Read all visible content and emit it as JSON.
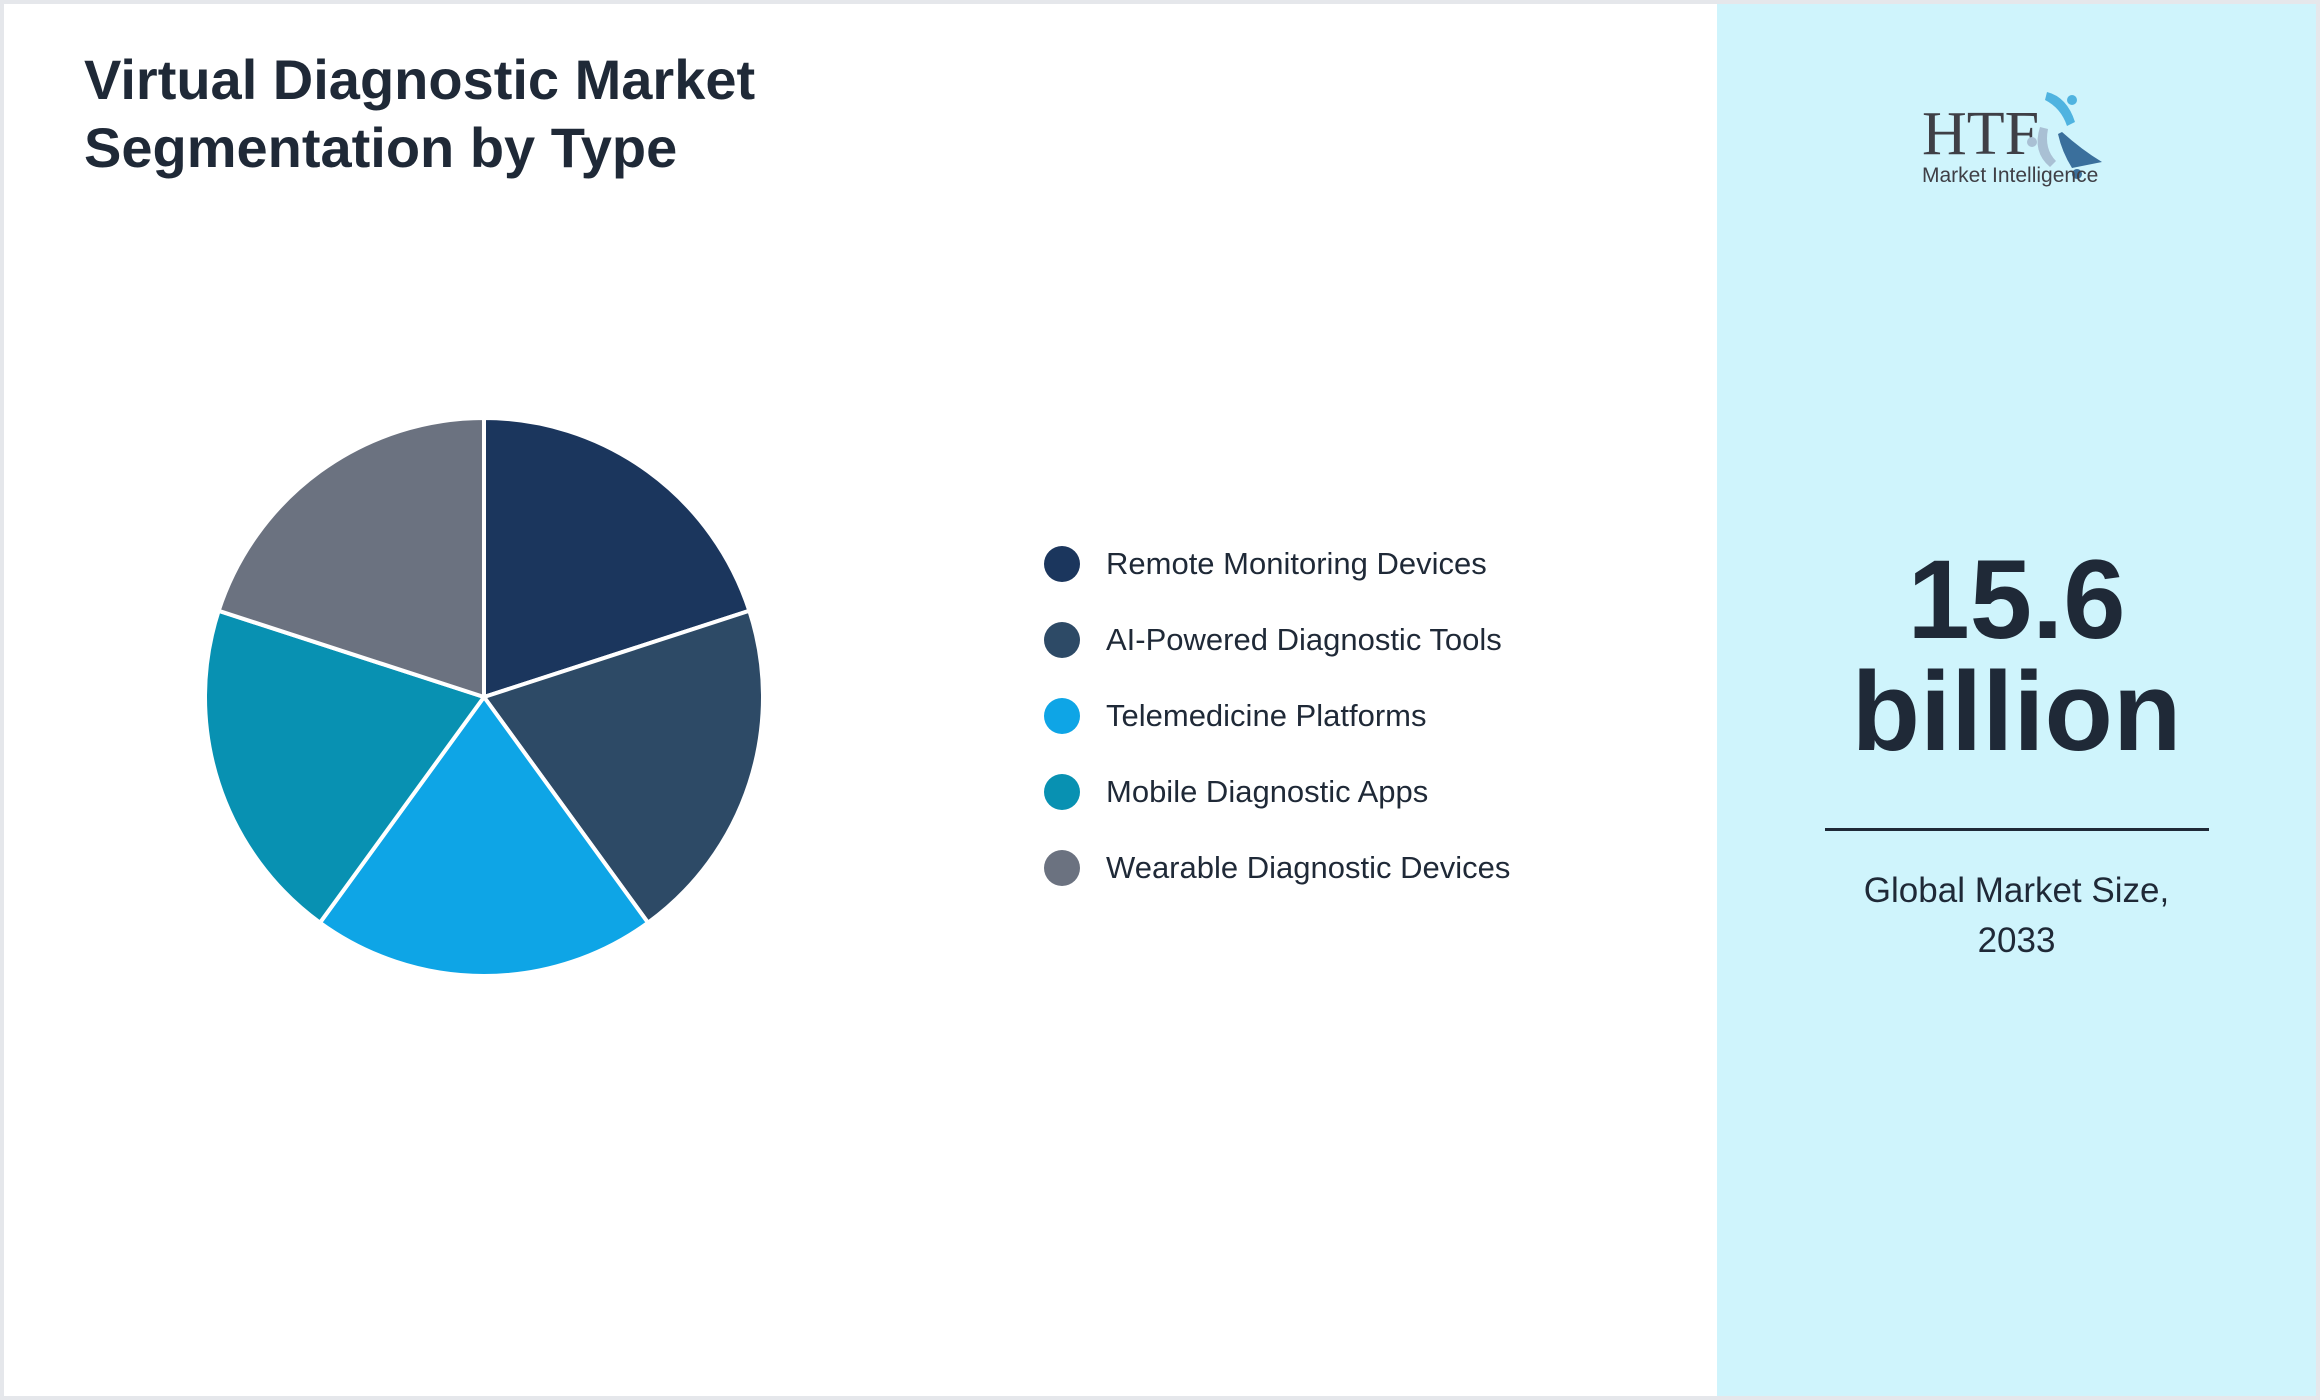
{
  "chart_data": {
    "type": "pie",
    "title": "Virtual Diagnostic Market Segmentation by Type",
    "categories": [
      "Remote Monitoring Devices",
      "AI-Powered Diagnostic Tools",
      "Telemedicine Platforms",
      "Mobile Diagnostic Apps",
      "Wearable Diagnostic Devices"
    ],
    "values": [
      20,
      20,
      20,
      20,
      20
    ],
    "colors": [
      "#1b365d",
      "#2d4a66",
      "#0ea5e6",
      "#0891b2",
      "#6b7280"
    ],
    "legend_position": "right"
  },
  "side": {
    "value_line1": "15.6",
    "value_line2": "billion",
    "caption_line1": "Global Market Size,",
    "caption_line2": "2033",
    "logo_text": "HTF Market Intelligence"
  }
}
